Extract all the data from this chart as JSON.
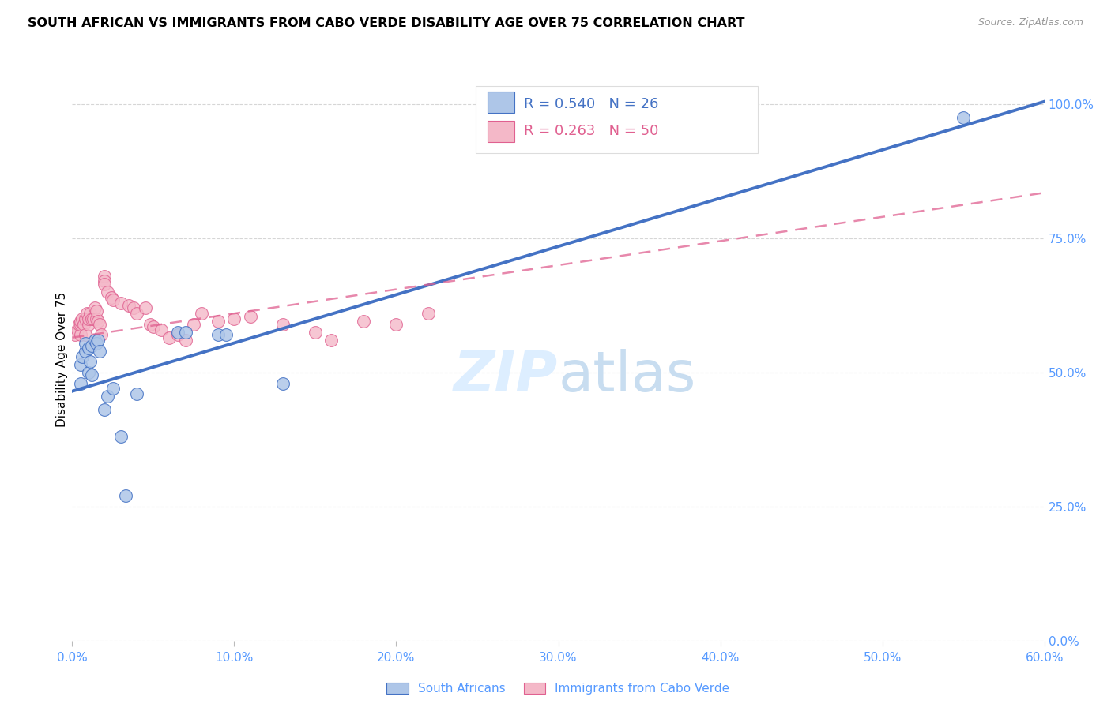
{
  "title": "SOUTH AFRICAN VS IMMIGRANTS FROM CABO VERDE DISABILITY AGE OVER 75 CORRELATION CHART",
  "source": "Source: ZipAtlas.com",
  "ylabel": "Disability Age Over 75",
  "xlim": [
    0.0,
    0.6
  ],
  "ylim": [
    0.0,
    1.05
  ],
  "x_tick_vals": [
    0.0,
    0.1,
    0.2,
    0.3,
    0.4,
    0.5,
    0.6
  ],
  "x_tick_labels": [
    "0.0%",
    "10.0%",
    "20.0%",
    "30.0%",
    "40.0%",
    "50.0%",
    "60.0%"
  ],
  "y_tick_vals": [
    0.0,
    0.25,
    0.5,
    0.75,
    1.0
  ],
  "y_tick_labels": [
    "0.0%",
    "25.0%",
    "50.0%",
    "75.0%",
    "100.0%"
  ],
  "legend1_r": "0.540",
  "legend1_n": "26",
  "legend2_r": "0.263",
  "legend2_n": "50",
  "sa_fill_color": "#aec6e8",
  "sa_edge_color": "#4472c4",
  "cv_fill_color": "#f4b8c8",
  "cv_edge_color": "#e06090",
  "sa_line_color": "#4472c4",
  "cv_line_color": "#e06090",
  "tick_color": "#5599ff",
  "watermark_color": "#ddeeff",
  "south_africans_x": [
    0.005,
    0.005,
    0.006,
    0.008,
    0.008,
    0.01,
    0.01,
    0.011,
    0.012,
    0.012,
    0.014,
    0.015,
    0.016,
    0.017,
    0.02,
    0.022,
    0.025,
    0.03,
    0.033,
    0.04,
    0.065,
    0.07,
    0.09,
    0.095,
    0.13,
    0.55
  ],
  "south_africans_y": [
    0.48,
    0.515,
    0.53,
    0.54,
    0.555,
    0.545,
    0.5,
    0.52,
    0.55,
    0.495,
    0.56,
    0.555,
    0.56,
    0.54,
    0.43,
    0.455,
    0.47,
    0.38,
    0.27,
    0.46,
    0.575,
    0.575,
    0.57,
    0.57,
    0.48,
    0.975
  ],
  "cabo_verde_x": [
    0.002,
    0.003,
    0.004,
    0.005,
    0.005,
    0.005,
    0.006,
    0.007,
    0.008,
    0.008,
    0.009,
    0.01,
    0.01,
    0.011,
    0.012,
    0.013,
    0.014,
    0.015,
    0.015,
    0.016,
    0.017,
    0.018,
    0.02,
    0.02,
    0.02,
    0.022,
    0.024,
    0.025,
    0.03,
    0.035,
    0.038,
    0.04,
    0.045,
    0.048,
    0.05,
    0.055,
    0.06,
    0.065,
    0.07,
    0.075,
    0.08,
    0.09,
    0.1,
    0.11,
    0.13,
    0.15,
    0.16,
    0.18,
    0.2,
    0.22
  ],
  "cabo_verde_y": [
    0.57,
    0.58,
    0.59,
    0.57,
    0.59,
    0.595,
    0.6,
    0.59,
    0.57,
    0.6,
    0.61,
    0.59,
    0.6,
    0.61,
    0.6,
    0.6,
    0.62,
    0.6,
    0.615,
    0.595,
    0.59,
    0.57,
    0.68,
    0.67,
    0.665,
    0.65,
    0.64,
    0.635,
    0.63,
    0.625,
    0.62,
    0.61,
    0.62,
    0.59,
    0.585,
    0.58,
    0.565,
    0.57,
    0.56,
    0.59,
    0.61,
    0.595,
    0.6,
    0.605,
    0.59,
    0.575,
    0.56,
    0.595,
    0.59,
    0.61
  ],
  "sa_line_x0": 0.0,
  "sa_line_x1": 0.6,
  "sa_line_y0": 0.465,
  "sa_line_y1": 1.005,
  "cv_line_x0": 0.0,
  "cv_line_x1": 0.6,
  "cv_line_y0": 0.565,
  "cv_line_y1": 0.835
}
